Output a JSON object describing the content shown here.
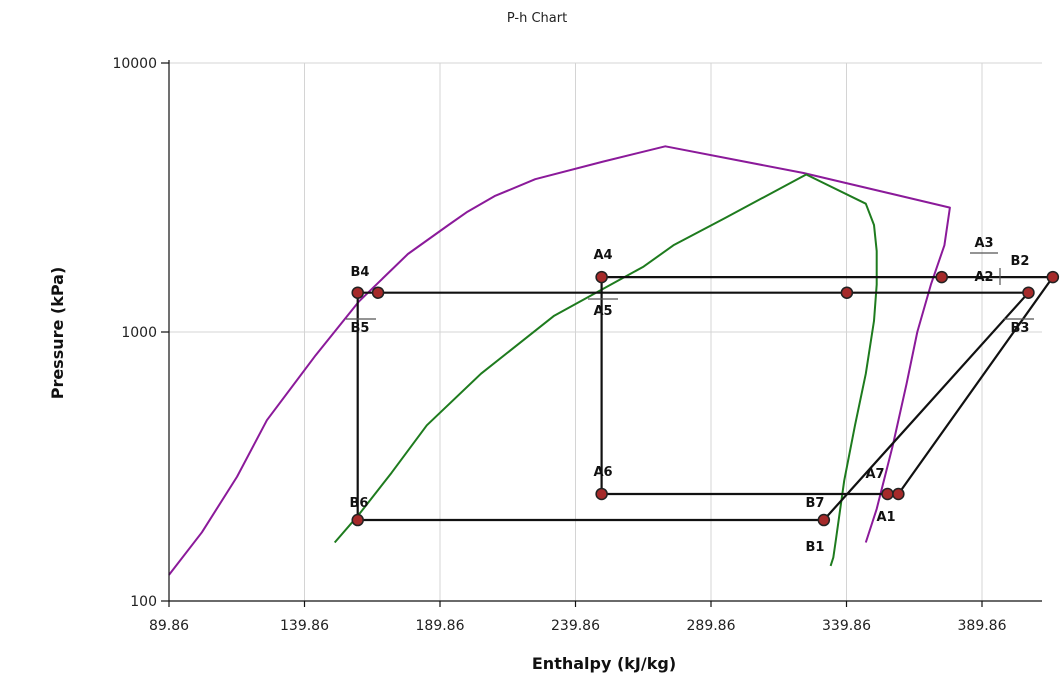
{
  "chart_data": {
    "type": "line",
    "title": "P-h Chart",
    "xlabel": "Enthalpy (kJ/kg)",
    "ylabel": "Pressure (kPa)",
    "xlim": [
      89.86,
      412
    ],
    "ylim": [
      100,
      10000
    ],
    "yscale": "log",
    "grid": true,
    "x_ticks": [
      "89.86",
      "139.86",
      "189.86",
      "239.86",
      "289.86",
      "339.86",
      "389.86"
    ],
    "y_ticks": [
      "100",
      "1000",
      "10000"
    ],
    "colors": {
      "dome_a": "#8b1a9a",
      "dome_b": "#1e7b1e",
      "cycle": "#111111",
      "point": "#a52a2a"
    },
    "series": [
      {
        "color": "#8b1a9a",
        "points": [
          [
            89.86,
            125
          ],
          [
            102,
            180
          ],
          [
            115,
            290
          ],
          [
            126,
            470
          ],
          [
            144,
            820
          ],
          [
            160,
            1300
          ],
          [
            178,
            1950
          ],
          [
            193,
            2500
          ],
          [
            200,
            2800
          ],
          [
            210,
            3200
          ],
          [
            225,
            3700
          ],
          [
            250,
            4300
          ],
          [
            273,
            4900
          ],
          [
            324,
            3900
          ],
          [
            378,
            2900
          ],
          [
            376,
            2100
          ],
          [
            371,
            1500
          ],
          [
            366,
            1000
          ],
          [
            362,
            640
          ],
          [
            357,
            380
          ],
          [
            351,
            220
          ],
          [
            347,
            165
          ]
        ]
      },
      {
        "color": "#1e7b1e",
        "points": [
          [
            151,
            165
          ],
          [
            160,
            210
          ],
          [
            172,
            300
          ],
          [
            185,
            450
          ],
          [
            205,
            700
          ],
          [
            232,
            1150
          ],
          [
            265,
            1750
          ],
          [
            276,
            2100
          ],
          [
            295,
            2650
          ],
          [
            325,
            3850
          ],
          [
            347,
            3000
          ],
          [
            350,
            2500
          ],
          [
            351,
            2000
          ],
          [
            351,
            1500
          ],
          [
            350,
            1100
          ],
          [
            347,
            700
          ],
          [
            343,
            450
          ],
          [
            339,
            280
          ],
          [
            336,
            170
          ],
          [
            335,
            145
          ],
          [
            334,
            135
          ]
        ]
      },
      {
        "color": "#111111",
        "points": [
          [
            159.5,
            1400
          ],
          [
            407,
            1400
          ],
          [
            407,
            1400
          ],
          [
            331.5,
            200
          ],
          [
            159.5,
            200
          ],
          [
            159.5,
            1400
          ]
        ]
      },
      {
        "color": "#111111",
        "points": [
          [
            249.5,
            1600
          ],
          [
            416,
            1600
          ],
          [
            359,
            250
          ],
          [
            249.5,
            250
          ],
          [
            249.5,
            1600
          ]
        ]
      }
    ],
    "markers": [
      [
        159.5,
        1400
      ],
      [
        167,
        1400
      ],
      [
        249.5,
        1600
      ],
      [
        340,
        1400
      ],
      [
        375,
        1600
      ],
      [
        407,
        1400
      ],
      [
        416,
        1600
      ],
      [
        249.5,
        250
      ],
      [
        355,
        250
      ],
      [
        359,
        250
      ],
      [
        159.5,
        200
      ],
      [
        331.5,
        200
      ]
    ],
    "annotations": [
      "A1",
      "A2",
      "A3",
      "A4",
      "A5",
      "A6",
      "A7",
      "B1",
      "B2",
      "B3",
      "B4",
      "B5",
      "B6",
      "B7"
    ]
  }
}
